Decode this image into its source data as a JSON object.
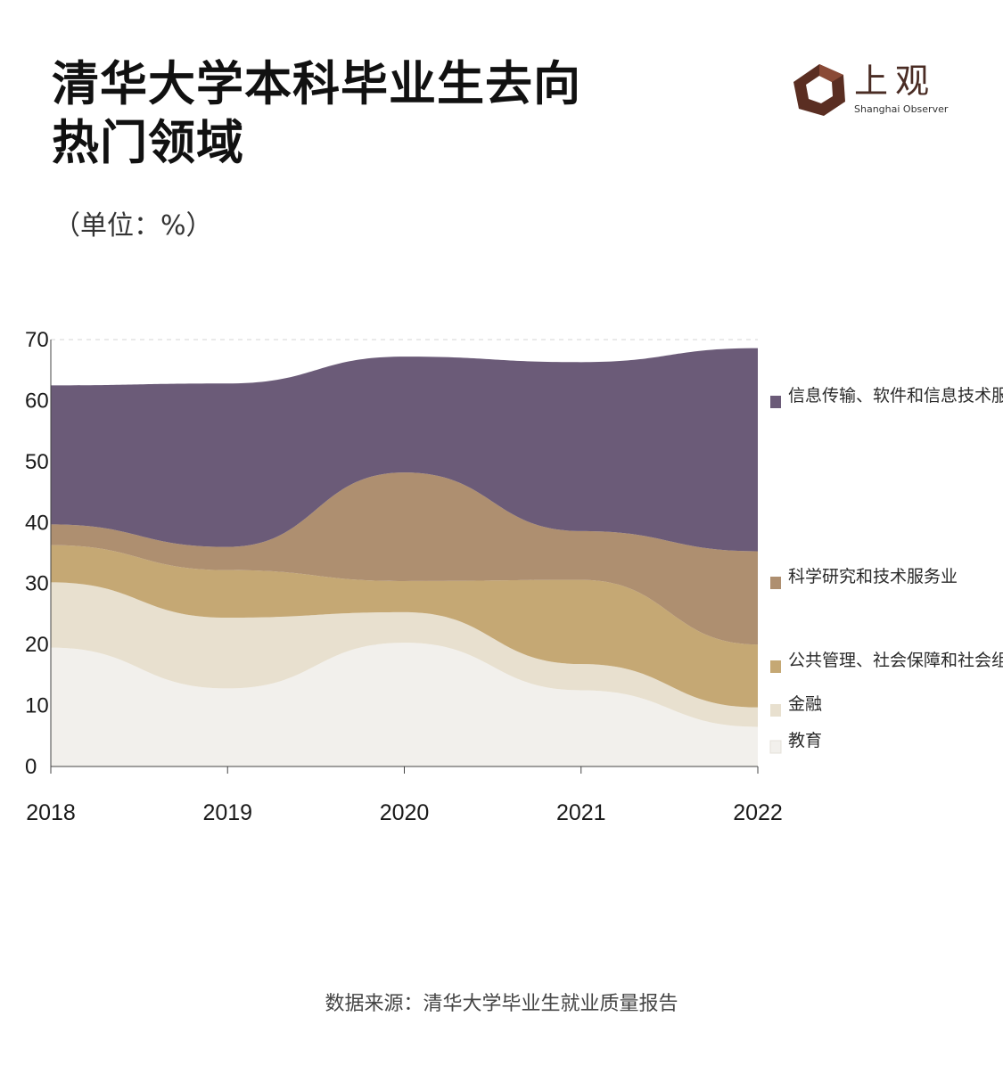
{
  "title": {
    "line1": "清华大学本科毕业生去向",
    "line2": "热门领域"
  },
  "unit": "（单位：%）",
  "logo": {
    "name": "上观",
    "english": "Shanghai Observer",
    "colors": {
      "dark": "#5a2e22",
      "mid": "#8a4a36",
      "light": "#b07a62"
    }
  },
  "source": "数据来源：清华大学毕业生就业质量报告",
  "chart_data": {
    "type": "area",
    "stacked": true,
    "x": [
      "2018",
      "2019",
      "2020",
      "2021",
      "2022"
    ],
    "ylim": [
      0,
      70
    ],
    "yticks": [
      0,
      10,
      20,
      30,
      40,
      50,
      60,
      70
    ],
    "legend_position": "right",
    "series": [
      {
        "name": "教育",
        "color": "#f2f0ec",
        "values": [
          19.5,
          12.8,
          20.3,
          12.5,
          6.5
        ]
      },
      {
        "name": "金融",
        "color": "#e8e0cf",
        "values": [
          10.7,
          11.6,
          5.0,
          4.3,
          3.2
        ]
      },
      {
        "name": "公共管理、社会保障和社会组织",
        "color": "#c5a874",
        "values": [
          6.1,
          7.8,
          5.1,
          13.8,
          10.3
        ]
      },
      {
        "name": "科学研究和技术服务业",
        "color": "#ae8f70",
        "values": [
          3.4,
          3.8,
          17.8,
          8.0,
          15.3
        ]
      },
      {
        "name": "信息传输、软件和信息技术服务业",
        "color": "#6b5b78",
        "values": [
          22.8,
          26.8,
          19.0,
          27.7,
          33.3
        ]
      }
    ]
  }
}
